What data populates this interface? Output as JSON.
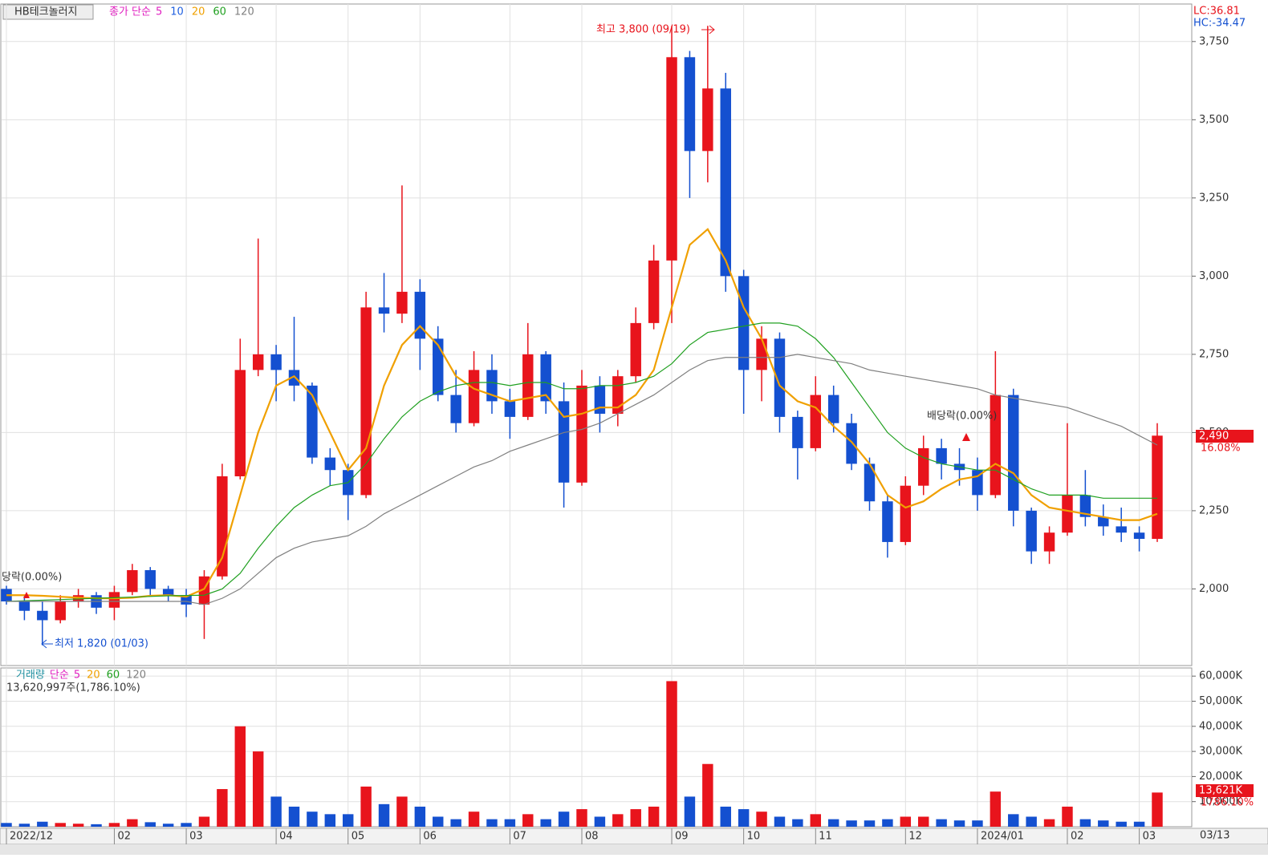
{
  "chart_data": {
    "type": "candlestick",
    "title": "HB테크놀러지",
    "legend_prefix": "종가 단순",
    "ma_legend": [
      {
        "label": "5",
        "color": "#e020c0"
      },
      {
        "label": "10",
        "color": "#2060e0"
      },
      {
        "label": "20",
        "color": "#f0a000"
      },
      {
        "label": "60",
        "color": "#20a020"
      },
      {
        "label": "120",
        "color": "#808080"
      }
    ],
    "lc": "LC:36.81",
    "hc": "HC:-34.47",
    "categories": [
      "2022/12",
      null,
      null,
      null,
      null,
      null,
      "02",
      null,
      null,
      null,
      "03",
      null,
      null,
      null,
      null,
      "04",
      null,
      null,
      null,
      "05",
      null,
      null,
      null,
      "06",
      null,
      null,
      null,
      null,
      "07",
      null,
      null,
      null,
      "08",
      null,
      null,
      null,
      null,
      "09",
      null,
      null,
      null,
      "10",
      null,
      null,
      null,
      "11",
      null,
      null,
      null,
      null,
      "12",
      null,
      null,
      null,
      "2024/01",
      null,
      null,
      null,
      null,
      "02",
      null,
      null,
      null,
      "03",
      null
    ],
    "end_date": "03/13",
    "up_color": "#e8141c",
    "down_color": "#1450d0",
    "open": [
      2000,
      1960,
      1930,
      1900,
      1960,
      1980,
      1940,
      1990,
      2060,
      2000,
      1980,
      1950,
      2040,
      2360,
      2700,
      2750,
      2700,
      2650,
      2420,
      2380,
      2300,
      2900,
      2880,
      2950,
      2800,
      2620,
      2530,
      2700,
      2600,
      2550,
      2750,
      2600,
      2340,
      2650,
      2560,
      2680,
      2850,
      3050,
      3700,
      3400,
      3600,
      3000,
      2700,
      2800,
      2550,
      2450,
      2620,
      2530,
      2400,
      2280,
      2150,
      2330,
      2450,
      2400,
      2380,
      2300,
      2620,
      2250,
      2120,
      2180,
      2300,
      2230,
      2200,
      2180,
      2160
    ],
    "high": [
      2010,
      1980,
      1960,
      1980,
      2000,
      1990,
      2010,
      2080,
      2070,
      2010,
      2000,
      2060,
      2400,
      2800,
      3120,
      2780,
      2870,
      2660,
      2450,
      2400,
      2950,
      3010,
      3290,
      2990,
      2840,
      2700,
      2760,
      2750,
      2640,
      2850,
      2760,
      2660,
      2700,
      2680,
      2700,
      2900,
      3100,
      3800,
      3720,
      3800,
      3650,
      3020,
      2840,
      2820,
      2570,
      2680,
      2650,
      2560,
      2420,
      2300,
      2360,
      2490,
      2480,
      2450,
      2420,
      2760,
      2640,
      2260,
      2200,
      2530,
      2380,
      2270,
      2260,
      2200,
      2530
    ],
    "low": [
      1950,
      1900,
      1820,
      1890,
      1940,
      1920,
      1900,
      1980,
      1980,
      1960,
      1910,
      1840,
      2030,
      2350,
      2680,
      2600,
      2600,
      2400,
      2330,
      2220,
      2290,
      2820,
      2850,
      2700,
      2600,
      2500,
      2520,
      2560,
      2480,
      2540,
      2560,
      2260,
      2330,
      2500,
      2520,
      2660,
      2830,
      2850,
      3250,
      3300,
      2950,
      2560,
      2600,
      2500,
      2350,
      2440,
      2500,
      2380,
      2250,
      2100,
      2140,
      2300,
      2350,
      2330,
      2250,
      2290,
      2200,
      2080,
      2080,
      2170,
      2200,
      2170,
      2150,
      2120,
      2150
    ],
    "close": [
      1960,
      1930,
      1900,
      1960,
      1980,
      1940,
      1990,
      2060,
      2000,
      1980,
      1950,
      2040,
      2360,
      2700,
      2750,
      2700,
      2650,
      2420,
      2380,
      2300,
      2900,
      2880,
      2950,
      2800,
      2620,
      2530,
      2700,
      2600,
      2550,
      2750,
      2600,
      2340,
      2650,
      2560,
      2680,
      2850,
      3050,
      3700,
      3400,
      3600,
      3000,
      2700,
      2800,
      2550,
      2450,
      2620,
      2530,
      2400,
      2280,
      2150,
      2330,
      2450,
      2400,
      2380,
      2300,
      2620,
      2250,
      2120,
      2180,
      2300,
      2230,
      2200,
      2180,
      2160,
      2490
    ],
    "ma": [
      {
        "name": "20",
        "color": "#f0a000",
        "values": [
          1980,
          1980,
          1978,
          1975,
          1972,
          1970,
          1970,
          1972,
          1978,
          1980,
          1975,
          2000,
          2100,
          2300,
          2500,
          2650,
          2680,
          2620,
          2500,
          2380,
          2450,
          2650,
          2780,
          2840,
          2780,
          2680,
          2640,
          2620,
          2600,
          2610,
          2620,
          2550,
          2560,
          2580,
          2580,
          2620,
          2700,
          2900,
          3100,
          3150,
          3050,
          2900,
          2800,
          2650,
          2600,
          2580,
          2520,
          2470,
          2400,
          2300,
          2260,
          2280,
          2320,
          2350,
          2360,
          2400,
          2370,
          2300,
          2260,
          2250,
          2240,
          2230,
          2220,
          2220,
          2240
        ]
      },
      {
        "name": "60",
        "color": "#20a020",
        "values": [
          1960,
          1962,
          1964,
          1966,
          1968,
          1970,
          1972,
          1974,
          1976,
          1978,
          1979,
          1980,
          2000,
          2050,
          2130,
          2200,
          2260,
          2300,
          2330,
          2340,
          2400,
          2480,
          2550,
          2600,
          2630,
          2650,
          2660,
          2660,
          2650,
          2660,
          2660,
          2640,
          2640,
          2650,
          2650,
          2660,
          2680,
          2720,
          2780,
          2820,
          2830,
          2840,
          2850,
          2850,
          2840,
          2800,
          2740,
          2660,
          2580,
          2500,
          2450,
          2420,
          2400,
          2390,
          2380,
          2380,
          2350,
          2320,
          2300,
          2300,
          2300,
          2290,
          2290,
          2290,
          2290
        ]
      },
      {
        "name": "120",
        "color": "#808080",
        "values": [
          1960,
          1960,
          1960,
          1960,
          1960,
          1960,
          1960,
          1960,
          1960,
          1960,
          1960,
          1950,
          1970,
          2000,
          2050,
          2100,
          2130,
          2150,
          2160,
          2170,
          2200,
          2240,
          2270,
          2300,
          2330,
          2360,
          2390,
          2410,
          2440,
          2460,
          2480,
          2500,
          2510,
          2530,
          2560,
          2590,
          2620,
          2660,
          2700,
          2730,
          2740,
          2740,
          2740,
          2740,
          2750,
          2740,
          2730,
          2720,
          2700,
          2690,
          2680,
          2670,
          2660,
          2650,
          2640,
          2620,
          2610,
          2600,
          2590,
          2580,
          2560,
          2540,
          2520,
          2490,
          2460
        ]
      }
    ],
    "ylim": [
      1755,
      3870
    ],
    "yticks": [
      {
        "value": 2000,
        "label": "2,000"
      },
      {
        "value": 2250,
        "label": "2,250"
      },
      {
        "value": 2500,
        "label": "2,500"
      },
      {
        "value": 2750,
        "label": "2,750"
      },
      {
        "value": 3000,
        "label": "3,000"
      },
      {
        "value": 3250,
        "label": "3,250"
      },
      {
        "value": 3500,
        "label": "3,500"
      },
      {
        "value": 3750,
        "label": "3,750"
      }
    ],
    "high_note": "최고 3,800 (09/19)",
    "low_note": "최저 1,820 (01/03)",
    "ex_dividend_notes": [
      "당락(0.00%)",
      "배당락(0.00%)"
    ],
    "last_price_label": "2,490",
    "last_change_label": "16.08%",
    "volume": {
      "title": "거래량",
      "legend_prefix": "단순",
      "ma_legend": [
        {
          "label": "5",
          "color": "#e020c0"
        },
        {
          "label": "20",
          "color": "#f0a000"
        },
        {
          "label": "60",
          "color": "#20a020"
        },
        {
          "label": "120",
          "color": "#808080"
        }
      ],
      "info": "13,620,997주(1,786.10%)",
      "values": [
        1500,
        1200,
        2000,
        1500,
        1200,
        1000,
        1500,
        3000,
        1800,
        1200,
        1500,
        4000,
        15000,
        40000,
        30000,
        12000,
        8000,
        6000,
        5000,
        5000,
        16000,
        9000,
        12000,
        8000,
        4000,
        3000,
        6000,
        3000,
        3000,
        5000,
        3000,
        6000,
        7000,
        4000,
        5000,
        7000,
        8000,
        58000,
        12000,
        25000,
        8000,
        7000,
        6000,
        4000,
        3000,
        5000,
        3000,
        2500,
        2500,
        3000,
        4000,
        4000,
        3000,
        2500,
        2500,
        14000,
        5000,
        4000,
        3000,
        8000,
        3000,
        2500,
        2000,
        2000,
        13621
      ],
      "ylim": [
        0,
        63250
      ],
      "yticks": [
        {
          "value": 10000,
          "label": "10,000K"
        },
        {
          "value": 20000,
          "label": "20,000K"
        },
        {
          "value": 30000,
          "label": "30,000K"
        },
        {
          "value": 40000,
          "label": "40,000K"
        },
        {
          "value": 50000,
          "label": "50,000K"
        },
        {
          "value": 60000,
          "label": "60,000K"
        }
      ],
      "last_label": "13,621K",
      "last_pct": "1786.10%"
    }
  }
}
